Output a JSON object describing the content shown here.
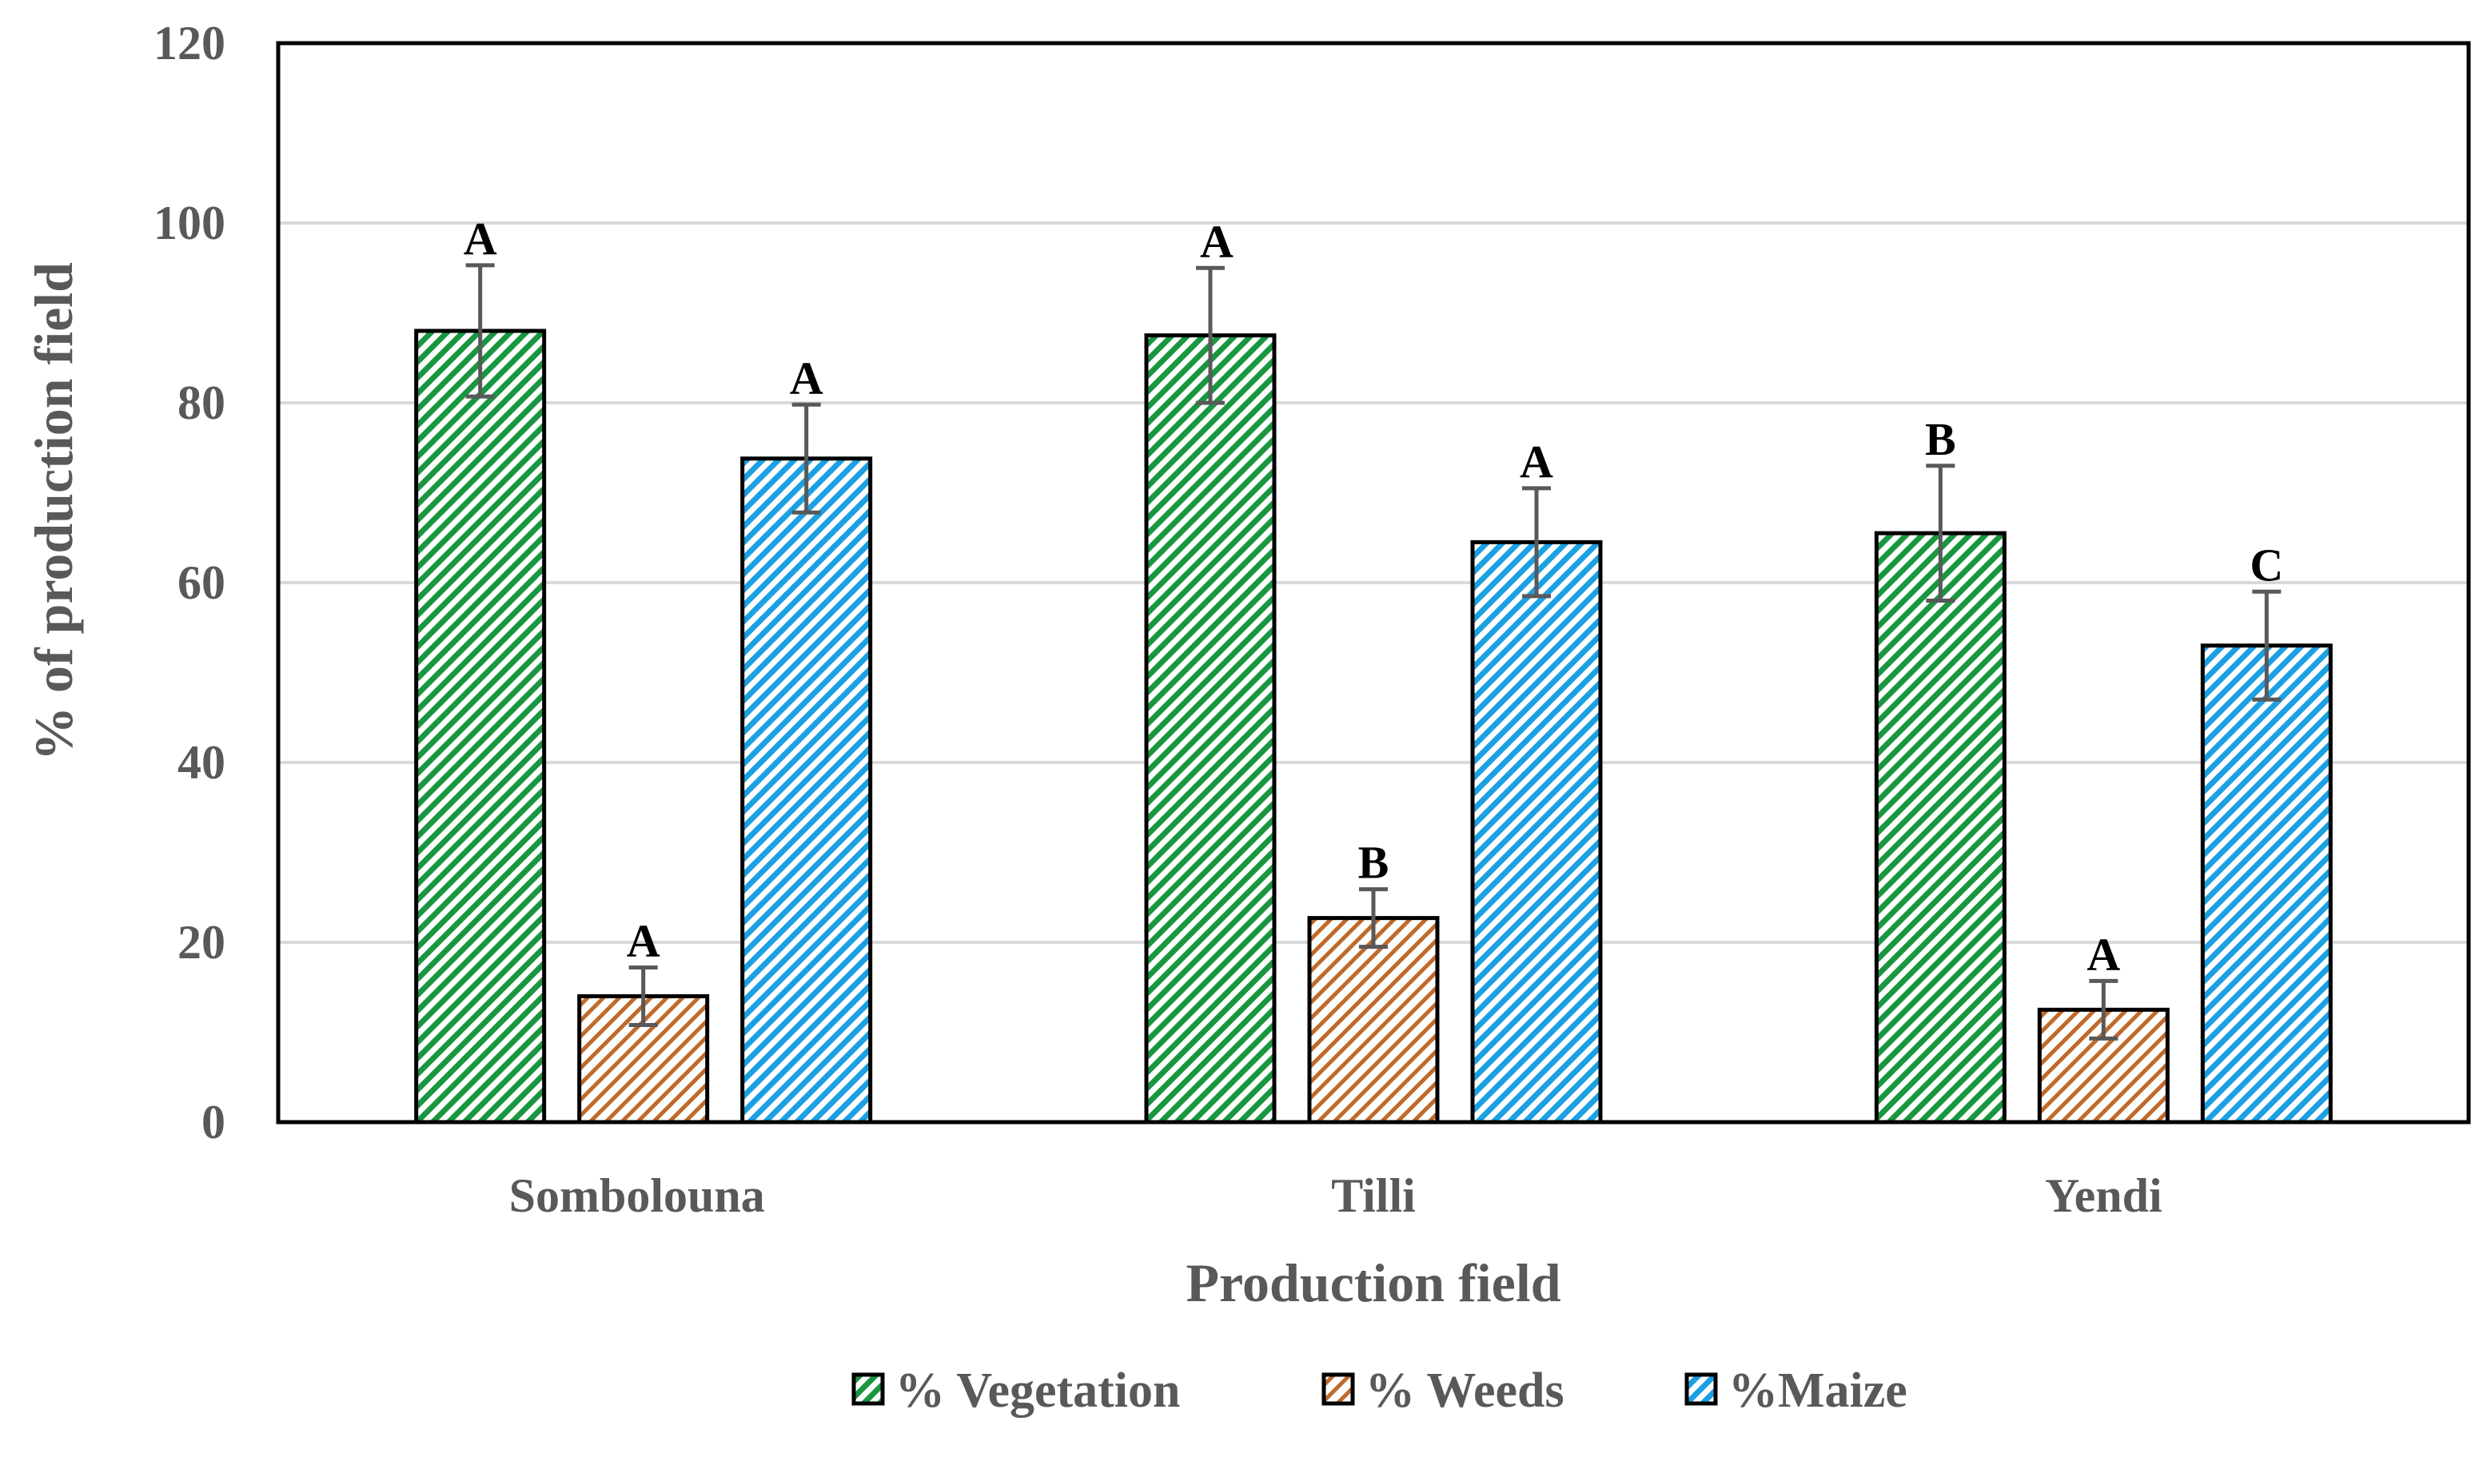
{
  "chart_data": {
    "type": "bar",
    "title": "",
    "xlabel": "Production field",
    "ylabel": "% of production field",
    "ylim": [
      0,
      120
    ],
    "yticks": [
      0,
      20,
      40,
      60,
      80,
      100,
      120
    ],
    "grid": true,
    "legend_position": "bottom",
    "categories": [
      "Sombolouna",
      "Tilli",
      "Yendi"
    ],
    "series": [
      {
        "name": "% Vegetation",
        "color": "#1a9641",
        "values": [
          88,
          87.5,
          65.5
        ],
        "errors": [
          7.3,
          7.5,
          7.5
        ],
        "labels": [
          "A",
          "A",
          "B"
        ]
      },
      {
        "name": "% Weeds",
        "color": "#c06a2b",
        "values": [
          14,
          22.7,
          12.5
        ],
        "errors": [
          3.2,
          3.2,
          3.2
        ],
        "labels": [
          "A",
          "B",
          "A"
        ]
      },
      {
        "name": "%Maize",
        "color": "#1ba1e2",
        "values": [
          73.8,
          64.5,
          53
        ],
        "errors": [
          6,
          6,
          6
        ],
        "labels": [
          "A",
          "A",
          "C"
        ]
      }
    ]
  }
}
